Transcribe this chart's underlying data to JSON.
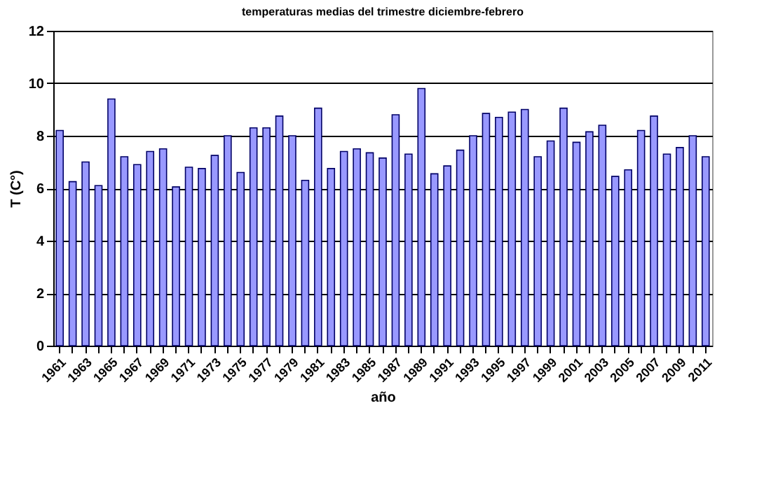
{
  "chart_data": {
    "type": "bar",
    "title": "temperaturas medias del trimestre diciembre-febrero",
    "xlabel": "año",
    "ylabel": "T (C°)",
    "categories": [
      "1961",
      null,
      "1963",
      null,
      "1965",
      null,
      "1967",
      null,
      "1969",
      null,
      "1971",
      null,
      "1973",
      null,
      "1975",
      null,
      "1977",
      null,
      "1979",
      null,
      "1981",
      null,
      "1983",
      null,
      "1985",
      null,
      "1987",
      null,
      "1989",
      null,
      "1991",
      null,
      "1993",
      null,
      "1995",
      null,
      "1997",
      null,
      "1999",
      null,
      "2001",
      null,
      "2003",
      null,
      "2005",
      null,
      "2007",
      null,
      "2009",
      null,
      "2011"
    ],
    "values": [
      8.2,
      6.25,
      7.0,
      6.1,
      9.4,
      7.2,
      6.9,
      7.4,
      7.5,
      6.05,
      6.8,
      6.75,
      7.25,
      8.0,
      6.6,
      8.3,
      8.3,
      8.75,
      8.0,
      6.3,
      9.05,
      6.75,
      7.4,
      7.5,
      7.35,
      7.15,
      8.8,
      7.3,
      9.8,
      6.55,
      6.85,
      7.45,
      8.0,
      8.85,
      8.7,
      8.9,
      9.0,
      7.2,
      7.8,
      9.05,
      7.75,
      8.15,
      8.4,
      6.45,
      6.7,
      8.2,
      8.75,
      7.3,
      7.55,
      8.0,
      7.2
    ],
    "color": "#9999ff",
    "ylim": [
      0,
      12
    ],
    "yticks": [
      0,
      2,
      4,
      6,
      8,
      10,
      12
    ],
    "grid": "y"
  }
}
